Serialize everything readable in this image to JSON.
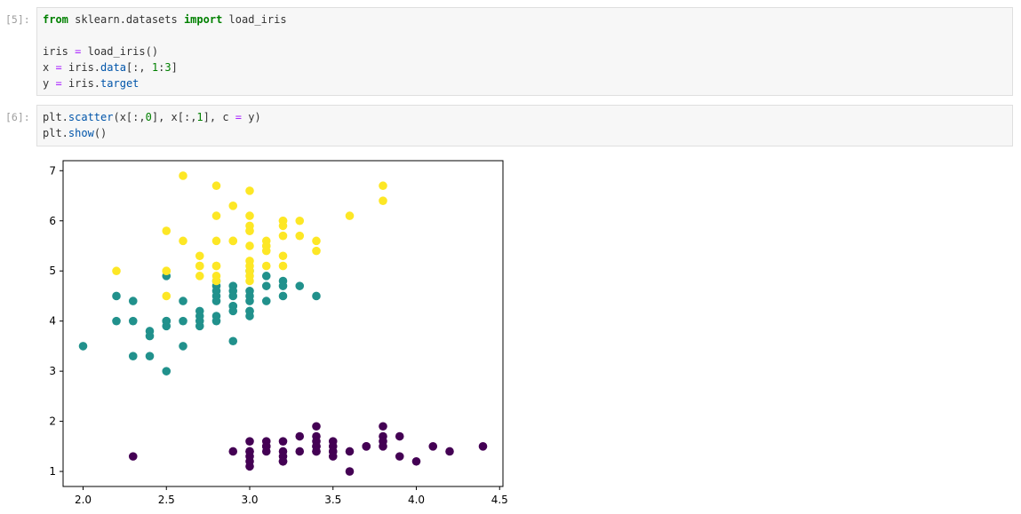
{
  "cells": [
    {
      "prompt": "[5]:",
      "lines": [
        [
          {
            "t": "from",
            "c": "kw"
          },
          {
            "t": " sklearn.datasets ",
            "c": ""
          },
          {
            "t": "import",
            "c": "kw"
          },
          {
            "t": " load_iris",
            "c": ""
          }
        ],
        [],
        [
          {
            "t": "iris ",
            "c": ""
          },
          {
            "t": "=",
            "c": "op"
          },
          {
            "t": " load_iris()",
            "c": ""
          }
        ],
        [
          {
            "t": "x ",
            "c": ""
          },
          {
            "t": "=",
            "c": "op"
          },
          {
            "t": " iris.",
            "c": ""
          },
          {
            "t": "data",
            "c": "attr"
          },
          {
            "t": "[:, ",
            "c": ""
          },
          {
            "t": "1",
            "c": "num"
          },
          {
            "t": ":",
            "c": ""
          },
          {
            "t": "3",
            "c": "num"
          },
          {
            "t": "]",
            "c": ""
          }
        ],
        [
          {
            "t": "y ",
            "c": ""
          },
          {
            "t": "=",
            "c": "op"
          },
          {
            "t": " iris.",
            "c": ""
          },
          {
            "t": "target",
            "c": "attr"
          }
        ]
      ]
    },
    {
      "prompt": "[6]:",
      "lines": [
        [
          {
            "t": "plt.",
            "c": ""
          },
          {
            "t": "scatter",
            "c": "attr"
          },
          {
            "t": "(x[:,",
            "c": ""
          },
          {
            "t": "0",
            "c": "num"
          },
          {
            "t": "], x[:,",
            "c": ""
          },
          {
            "t": "1",
            "c": "num"
          },
          {
            "t": "], c ",
            "c": ""
          },
          {
            "t": "=",
            "c": "op"
          },
          {
            "t": " y)",
            "c": ""
          }
        ],
        [
          {
            "t": "plt.",
            "c": ""
          },
          {
            "t": "show",
            "c": "attr"
          },
          {
            "t": "()",
            "c": ""
          }
        ]
      ]
    }
  ],
  "chart_data": {
    "type": "scatter",
    "xlim": [
      1.88,
      4.52
    ],
    "ylim": [
      0.7,
      7.2
    ],
    "xticks": [
      "2.0",
      "2.5",
      "3.0",
      "3.5",
      "4.0",
      "4.5"
    ],
    "yticks": [
      "1",
      "2",
      "3",
      "4",
      "5",
      "6",
      "7"
    ],
    "grid": false,
    "series": [
      {
        "color": "#440154",
        "x": [
          2.3,
          2.9,
          3.0,
          3.0,
          3.0,
          3.0,
          3.0,
          3.1,
          3.1,
          3.1,
          3.2,
          3.2,
          3.2,
          3.2,
          3.3,
          3.3,
          3.4,
          3.4,
          3.4,
          3.4,
          3.4,
          3.4,
          3.5,
          3.5,
          3.5,
          3.5,
          3.5,
          3.6,
          3.6,
          3.7,
          3.7,
          3.8,
          3.8,
          3.8,
          3.8,
          3.9,
          3.9,
          4.0,
          4.1,
          4.2,
          4.4,
          3.1,
          3.2,
          3.4,
          3.0
        ],
        "y": [
          1.3,
          1.4,
          1.6,
          1.4,
          1.3,
          1.1,
          1.2,
          1.6,
          1.5,
          1.4,
          1.6,
          1.4,
          1.3,
          1.2,
          1.7,
          1.4,
          1.9,
          1.7,
          1.6,
          1.5,
          1.5,
          1.4,
          1.6,
          1.5,
          1.4,
          1.4,
          1.3,
          1.4,
          1.0,
          1.5,
          1.5,
          1.9,
          1.7,
          1.6,
          1.5,
          1.7,
          1.3,
          1.2,
          1.5,
          1.4,
          1.5,
          1.5,
          1.2,
          1.4,
          1.4
        ]
      },
      {
        "color": "#21918c",
        "x": [
          2.0,
          2.2,
          2.2,
          2.3,
          2.3,
          2.3,
          2.4,
          2.4,
          2.4,
          2.5,
          2.5,
          2.5,
          2.5,
          2.6,
          2.6,
          2.6,
          2.7,
          2.7,
          2.7,
          2.8,
          2.8,
          2.8,
          2.8,
          2.8,
          2.8,
          2.9,
          2.9,
          2.9,
          2.9,
          2.9,
          2.9,
          3.0,
          3.0,
          3.0,
          3.0,
          3.0,
          3.0,
          3.1,
          3.1,
          3.1,
          3.2,
          3.2,
          3.2,
          3.3,
          3.4,
          2.7,
          2.8,
          2.5,
          3.0,
          2.9
        ],
        "y": [
          3.5,
          4.5,
          4.0,
          4.4,
          4.0,
          3.3,
          3.8,
          3.7,
          3.3,
          4.9,
          4.0,
          3.9,
          3.0,
          4.4,
          4.0,
          3.5,
          4.2,
          4.1,
          3.9,
          4.8,
          4.7,
          4.6,
          4.5,
          4.1,
          4.0,
          4.7,
          4.6,
          4.5,
          4.3,
          4.2,
          3.6,
          5.0,
          4.6,
          4.5,
          4.2,
          4.1,
          4.2,
          4.9,
          4.7,
          4.4,
          4.8,
          4.7,
          4.5,
          4.7,
          4.5,
          4.0,
          4.4,
          4.0,
          4.4,
          4.3
        ]
      },
      {
        "color": "#fde725",
        "x": [
          2.2,
          2.5,
          2.5,
          2.5,
          2.5,
          2.6,
          2.6,
          2.7,
          2.7,
          2.7,
          2.8,
          2.8,
          2.8,
          2.8,
          2.8,
          2.8,
          2.9,
          2.9,
          3.0,
          3.0,
          3.0,
          3.0,
          3.0,
          3.0,
          3.0,
          3.0,
          3.0,
          3.1,
          3.1,
          3.1,
          3.1,
          3.2,
          3.2,
          3.2,
          3.2,
          3.2,
          3.3,
          3.3,
          3.4,
          3.4,
          3.6,
          3.8,
          3.8,
          2.8,
          3.0,
          2.7,
          3.1,
          3.2,
          2.9,
          3.0
        ],
        "y": [
          5.0,
          5.8,
          5.0,
          5.0,
          4.5,
          6.9,
          5.6,
          5.3,
          5.1,
          4.9,
          6.7,
          6.1,
          5.6,
          5.1,
          4.9,
          4.8,
          6.3,
          5.6,
          6.6,
          6.1,
          5.9,
          5.8,
          5.5,
          5.2,
          5.1,
          4.9,
          4.8,
          5.6,
          5.5,
          5.4,
          5.1,
          6.0,
          5.9,
          5.7,
          5.3,
          5.1,
          6.0,
          5.7,
          5.6,
          5.4,
          6.1,
          6.7,
          6.4,
          5.1,
          5.0,
          5.1,
          5.5,
          6.0,
          5.6,
          5.8
        ]
      }
    ]
  }
}
